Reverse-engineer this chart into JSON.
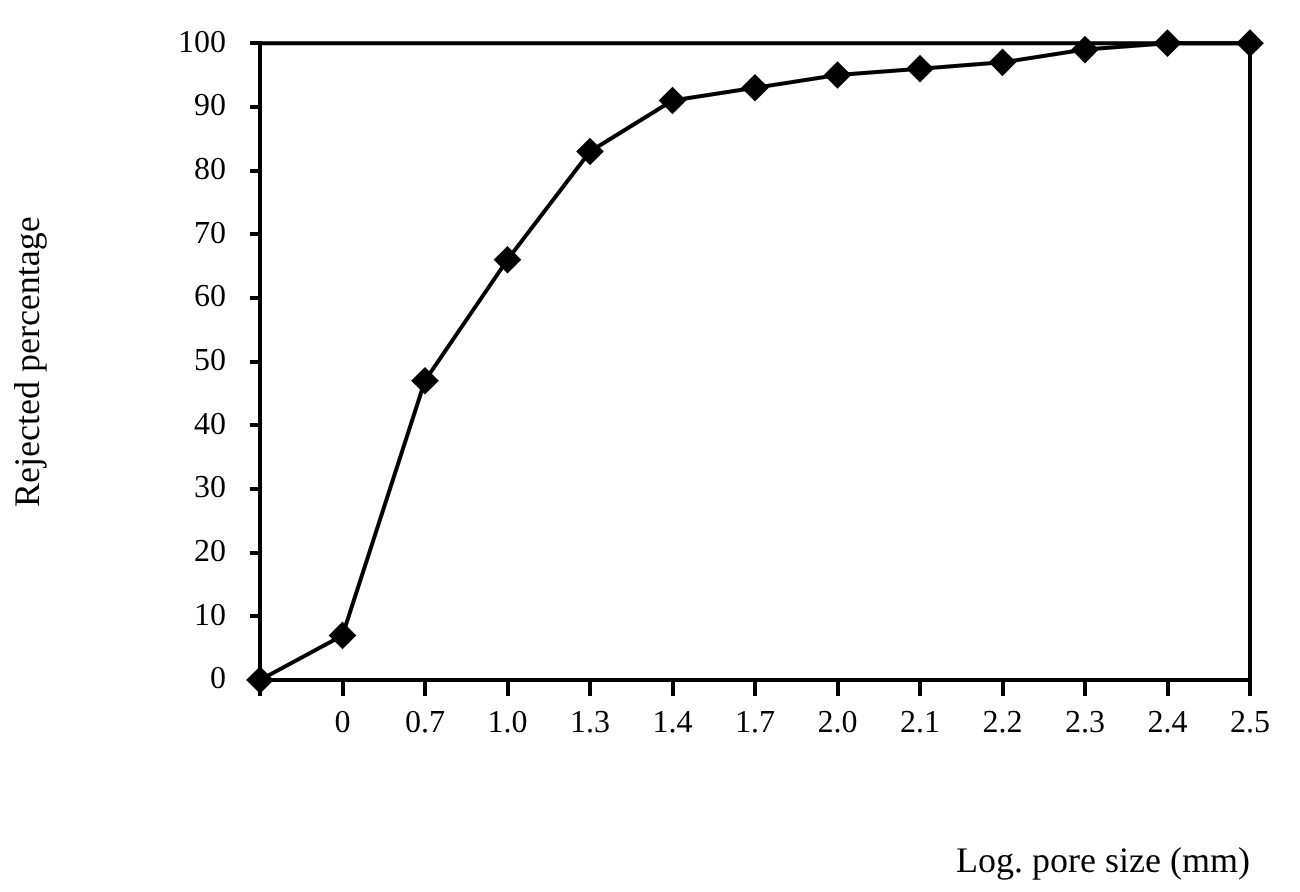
{
  "chart_data": {
    "type": "line",
    "xlabel": "Log. pore size (mm)",
    "ylabel": "Rejected percentage",
    "categories": [
      null,
      "0",
      "0.7",
      "1.0",
      "1.3",
      "1.4",
      "1.7",
      "2.0",
      "2.1",
      "2.2",
      "2.3",
      "2.4",
      "2.5"
    ],
    "series": [
      {
        "color": "#000000",
        "values": [
          0,
          7,
          47,
          66,
          83,
          91,
          93,
          95,
          96,
          97,
          99,
          100,
          100
        ]
      }
    ],
    "ylim": [
      0,
      100
    ],
    "yticks": [
      0,
      10,
      20,
      30,
      40,
      50,
      60,
      70,
      80,
      90,
      100
    ],
    "grid": false,
    "legend": false,
    "marker": "diamond",
    "line_style": "solid"
  }
}
